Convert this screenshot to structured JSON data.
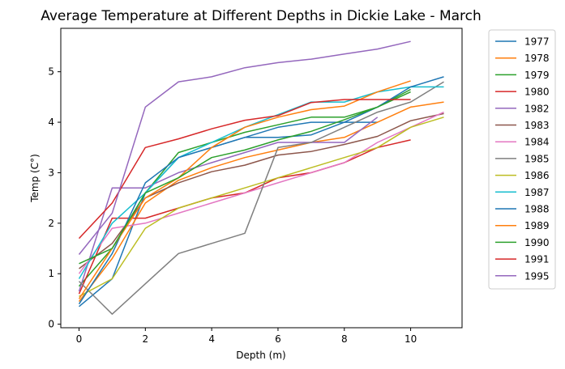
{
  "chart_data": {
    "type": "line",
    "title": "Average Temperature at Different Depths in Dickie Lake - March",
    "xlabel": "Depth (m)",
    "ylabel": "Temp (C°)",
    "xlim": [
      -0.55,
      11.55
    ],
    "ylim": [
      -0.07,
      5.86
    ],
    "xticks": [
      0,
      2,
      4,
      6,
      8,
      10
    ],
    "yticks": [
      0,
      1,
      2,
      3,
      4,
      5
    ],
    "grid": false,
    "legend_position": "outside-right",
    "series": [
      {
        "name": "1977",
        "color": "#1f77b4",
        "x": [
          0,
          1,
          2,
          3,
          4,
          5,
          6,
          7,
          8,
          9
        ],
        "y": [
          0.35,
          0.9,
          2.6,
          3.3,
          3.5,
          3.7,
          3.9,
          4.0,
          4.0,
          4.0
        ]
      },
      {
        "name": "1978",
        "color": "#ff7f0e",
        "x": [
          0,
          1,
          2,
          3,
          4,
          5,
          6,
          7,
          8,
          9,
          10,
          11
        ],
        "y": [
          0.45,
          1.3,
          2.4,
          2.85,
          3.1,
          3.3,
          3.45,
          3.6,
          3.7,
          4.0,
          4.3,
          4.4
        ]
      },
      {
        "name": "1979",
        "color": "#2ca02c",
        "x": [
          0,
          1,
          2,
          3,
          4,
          5,
          6,
          7,
          8,
          9,
          10
        ],
        "y": [
          0.75,
          1.5,
          2.6,
          3.4,
          3.6,
          3.8,
          3.95,
          4.1,
          4.1,
          4.3,
          4.65
        ]
      },
      {
        "name": "1980",
        "color": "#d62728",
        "x": [
          0,
          1,
          2,
          3,
          4,
          5,
          6,
          7,
          8,
          9,
          10
        ],
        "y": [
          0.6,
          2.1,
          2.1,
          2.3,
          2.5,
          2.6,
          2.9,
          3.0,
          3.2,
          3.5,
          3.65
        ]
      },
      {
        "name": "1982",
        "color": "#9467bd",
        "x": [
          0,
          1,
          2,
          3,
          4,
          5,
          6,
          7,
          8,
          9
        ],
        "y": [
          0.65,
          2.7,
          2.7,
          3.0,
          3.2,
          3.4,
          3.6,
          3.6,
          3.6,
          4.1
        ]
      },
      {
        "name": "1983",
        "color": "#8c564b",
        "x": [
          0,
          1,
          2,
          3,
          4,
          5,
          6,
          7,
          8,
          9,
          10,
          11
        ],
        "y": [
          1.1,
          1.6,
          2.5,
          2.8,
          3.02,
          3.15,
          3.35,
          3.42,
          3.56,
          3.72,
          4.03,
          4.17
        ]
      },
      {
        "name": "1984",
        "color": "#e377c2",
        "x": [
          0,
          1,
          2,
          3,
          4,
          5,
          6,
          7,
          8,
          9,
          10,
          11
        ],
        "y": [
          1.0,
          1.9,
          2.0,
          2.2,
          2.4,
          2.6,
          2.8,
          3.0,
          3.2,
          3.6,
          3.9,
          4.2
        ]
      },
      {
        "name": "1985",
        "color": "#7f7f7f",
        "x": [
          0,
          1,
          2,
          3,
          4,
          5,
          6,
          7,
          8,
          9,
          10,
          11
        ],
        "y": [
          0.85,
          0.2,
          0.8,
          1.4,
          1.6,
          1.8,
          3.5,
          3.6,
          3.9,
          4.2,
          4.4,
          4.8
        ]
      },
      {
        "name": "1986",
        "color": "#bcbd22",
        "x": [
          0,
          1,
          2,
          3,
          4,
          5,
          6,
          7,
          8,
          9,
          10,
          11
        ],
        "y": [
          0.55,
          0.9,
          1.9,
          2.3,
          2.5,
          2.7,
          2.9,
          3.1,
          3.3,
          3.5,
          3.9,
          4.1
        ]
      },
      {
        "name": "1987",
        "color": "#17becf",
        "x": [
          0,
          1,
          2,
          3,
          4,
          5,
          6,
          7,
          8,
          9,
          10,
          11
        ],
        "y": [
          0.9,
          2.0,
          2.6,
          3.3,
          3.6,
          3.9,
          4.15,
          4.4,
          4.4,
          4.6,
          4.7,
          4.7
        ]
      },
      {
        "name": "1988",
        "color": "#1f77b4",
        "x": [
          0,
          1,
          2,
          3,
          4,
          5,
          6,
          7,
          8,
          9,
          10,
          11
        ],
        "y": [
          0.4,
          1.4,
          2.8,
          3.3,
          3.5,
          3.7,
          3.7,
          3.75,
          4.0,
          4.3,
          4.7,
          4.9
        ]
      },
      {
        "name": "1989",
        "color": "#ff7f0e",
        "x": [
          0,
          1,
          2,
          3,
          4,
          5,
          6,
          7,
          8,
          9,
          10
        ],
        "y": [
          0.5,
          1.5,
          2.5,
          2.9,
          3.5,
          3.9,
          4.1,
          4.25,
          4.32,
          4.6,
          4.82
        ]
      },
      {
        "name": "1990",
        "color": "#2ca02c",
        "x": [
          0,
          1,
          2,
          3,
          4,
          5,
          6,
          7,
          8,
          9,
          10
        ],
        "y": [
          1.2,
          1.5,
          2.6,
          2.9,
          3.3,
          3.45,
          3.65,
          3.82,
          4.05,
          4.3,
          4.6
        ]
      },
      {
        "name": "1991",
        "color": "#d62728",
        "x": [
          0,
          1,
          2,
          3,
          4,
          5,
          6,
          7,
          8,
          9,
          10
        ],
        "y": [
          1.7,
          2.4,
          3.5,
          3.67,
          3.87,
          4.04,
          4.13,
          4.39,
          4.45,
          4.45,
          4.45
        ]
      },
      {
        "name": "1995",
        "color": "#9467bd",
        "x": [
          0,
          1,
          2,
          3,
          4,
          5,
          6,
          7,
          8,
          9,
          10
        ],
        "y": [
          1.38,
          2.2,
          4.3,
          4.8,
          4.9,
          5.08,
          5.18,
          5.25,
          5.35,
          5.45,
          5.6
        ]
      }
    ]
  }
}
